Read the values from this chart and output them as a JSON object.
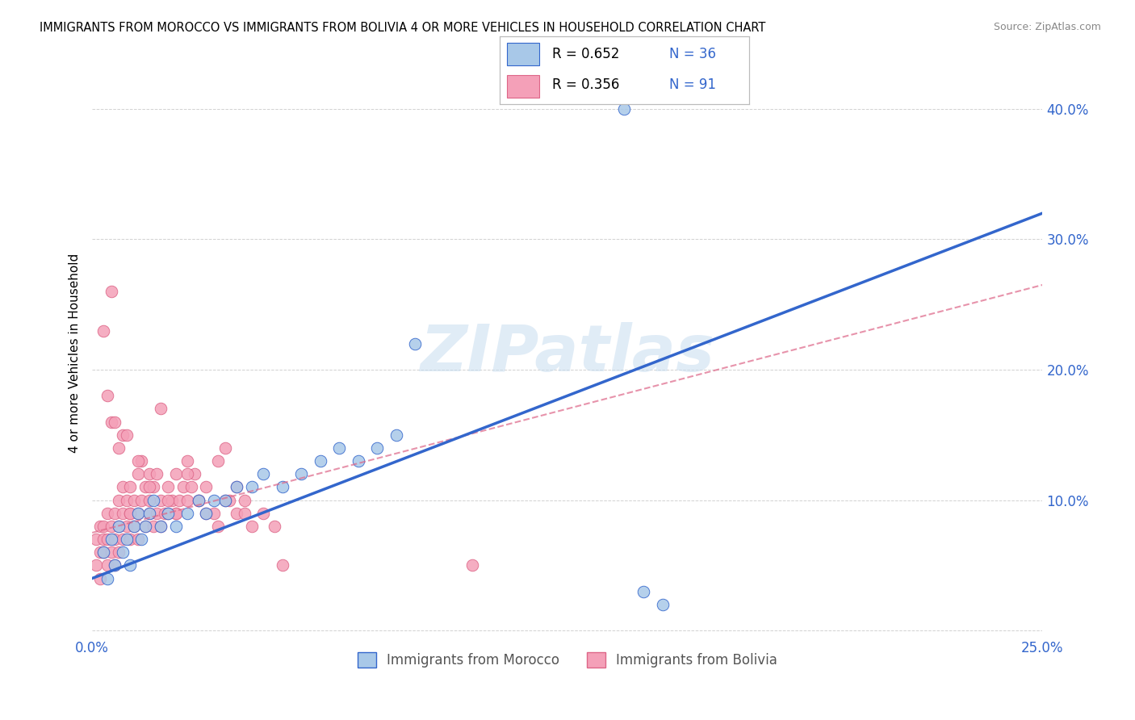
{
  "title": "IMMIGRANTS FROM MOROCCO VS IMMIGRANTS FROM BOLIVIA 4 OR MORE VEHICLES IN HOUSEHOLD CORRELATION CHART",
  "source": "Source: ZipAtlas.com",
  "ylabel": "4 or more Vehicles in Household",
  "xlim": [
    0.0,
    0.25
  ],
  "ylim": [
    -0.005,
    0.43
  ],
  "color_morocco": "#a8c8e8",
  "color_bolivia": "#f4a0b8",
  "line_color_morocco": "#3366cc",
  "line_color_bolivia": "#dd6688",
  "watermark": "ZIPatlas",
  "morocco_r": "0.652",
  "morocco_n": "36",
  "bolivia_r": "0.356",
  "bolivia_n": "91",
  "morocco_scatter_x": [
    0.003,
    0.004,
    0.005,
    0.006,
    0.007,
    0.008,
    0.009,
    0.01,
    0.011,
    0.012,
    0.013,
    0.014,
    0.015,
    0.016,
    0.018,
    0.02,
    0.022,
    0.025,
    0.028,
    0.03,
    0.032,
    0.035,
    0.038,
    0.042,
    0.045,
    0.05,
    0.055,
    0.06,
    0.065,
    0.07,
    0.075,
    0.08,
    0.085,
    0.14,
    0.145,
    0.15
  ],
  "morocco_scatter_y": [
    0.06,
    0.04,
    0.07,
    0.05,
    0.08,
    0.06,
    0.07,
    0.05,
    0.08,
    0.09,
    0.07,
    0.08,
    0.09,
    0.1,
    0.08,
    0.09,
    0.08,
    0.09,
    0.1,
    0.09,
    0.1,
    0.1,
    0.11,
    0.11,
    0.12,
    0.11,
    0.12,
    0.13,
    0.14,
    0.13,
    0.14,
    0.15,
    0.22,
    0.4,
    0.03,
    0.02
  ],
  "bolivia_scatter_x": [
    0.001,
    0.001,
    0.002,
    0.002,
    0.002,
    0.003,
    0.003,
    0.003,
    0.004,
    0.004,
    0.004,
    0.005,
    0.005,
    0.005,
    0.006,
    0.006,
    0.006,
    0.007,
    0.007,
    0.007,
    0.008,
    0.008,
    0.008,
    0.009,
    0.009,
    0.01,
    0.01,
    0.01,
    0.011,
    0.011,
    0.012,
    0.012,
    0.012,
    0.013,
    0.013,
    0.014,
    0.014,
    0.015,
    0.015,
    0.015,
    0.016,
    0.016,
    0.017,
    0.017,
    0.018,
    0.018,
    0.019,
    0.02,
    0.02,
    0.021,
    0.022,
    0.022,
    0.023,
    0.024,
    0.025,
    0.025,
    0.026,
    0.027,
    0.028,
    0.03,
    0.032,
    0.033,
    0.035,
    0.036,
    0.038,
    0.04,
    0.042,
    0.045,
    0.048,
    0.05,
    0.005,
    0.008,
    0.01,
    0.012,
    0.015,
    0.018,
    0.02,
    0.022,
    0.025,
    0.028,
    0.03,
    0.033,
    0.035,
    0.038,
    0.04,
    0.003,
    0.004,
    0.006,
    0.007,
    0.009,
    0.1
  ],
  "bolivia_scatter_y": [
    0.07,
    0.05,
    0.06,
    0.08,
    0.04,
    0.07,
    0.06,
    0.08,
    0.05,
    0.09,
    0.07,
    0.26,
    0.08,
    0.06,
    0.09,
    0.07,
    0.05,
    0.1,
    0.08,
    0.06,
    0.09,
    0.07,
    0.11,
    0.08,
    0.1,
    0.09,
    0.11,
    0.07,
    0.1,
    0.08,
    0.09,
    0.12,
    0.07,
    0.1,
    0.13,
    0.08,
    0.11,
    0.1,
    0.09,
    0.12,
    0.08,
    0.11,
    0.09,
    0.12,
    0.1,
    0.08,
    0.09,
    0.11,
    0.09,
    0.1,
    0.09,
    0.12,
    0.1,
    0.11,
    0.1,
    0.13,
    0.11,
    0.12,
    0.1,
    0.11,
    0.09,
    0.13,
    0.14,
    0.1,
    0.09,
    0.1,
    0.08,
    0.09,
    0.08,
    0.05,
    0.16,
    0.15,
    0.09,
    0.13,
    0.11,
    0.17,
    0.1,
    0.09,
    0.12,
    0.1,
    0.09,
    0.08,
    0.1,
    0.11,
    0.09,
    0.23,
    0.18,
    0.16,
    0.14,
    0.15,
    0.05
  ]
}
